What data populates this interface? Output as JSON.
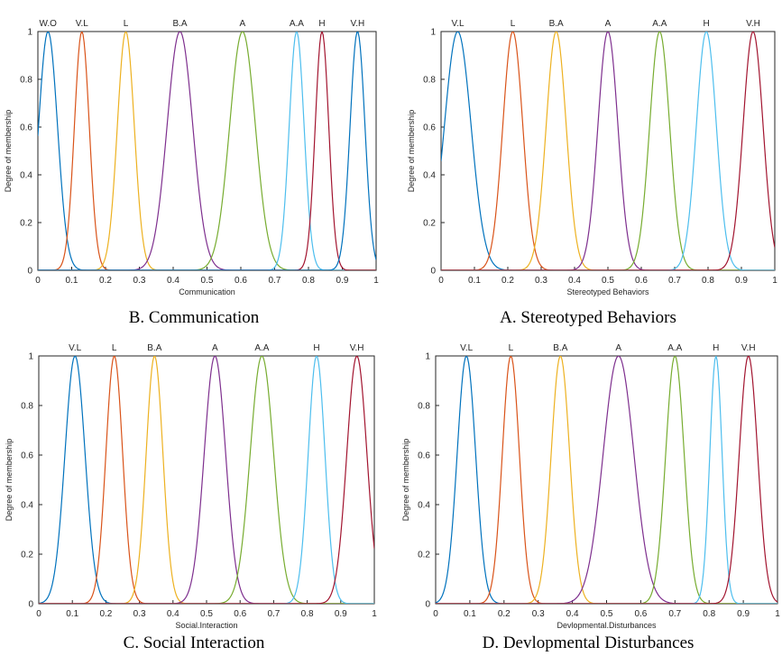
{
  "chart_data": [
    {
      "type": "line",
      "caption": "B. Communication",
      "xlabel": "Communication",
      "ylabel": "Degree of membership",
      "xlim": [
        0,
        1
      ],
      "ylim": [
        0,
        1
      ],
      "xticks": [
        "0",
        "0.1",
        "0.2",
        "0.3",
        "0.4",
        "0.5",
        "0.6",
        "0.7",
        "0.8",
        "0.9",
        "1"
      ],
      "yticks": [
        "0",
        "0.2",
        "0.4",
        "0.6",
        "0.8",
        "1"
      ],
      "grid": false,
      "series": [
        {
          "name": "W.O",
          "color": "#0072BD",
          "center": 0.03,
          "sigma": 0.028
        },
        {
          "name": "V.L",
          "color": "#D95319",
          "center": 0.13,
          "sigma": 0.022
        },
        {
          "name": "L",
          "color": "#EDB120",
          "center": 0.26,
          "sigma": 0.025
        },
        {
          "name": "B.A",
          "color": "#7E2F8E",
          "center": 0.42,
          "sigma": 0.038
        },
        {
          "name": "A",
          "color": "#77AC30",
          "center": 0.605,
          "sigma": 0.038
        },
        {
          "name": "A.A",
          "color": "#4DBEEE",
          "center": 0.765,
          "sigma": 0.022
        },
        {
          "name": "H",
          "color": "#A2142F",
          "center": 0.84,
          "sigma": 0.02
        },
        {
          "name": "V.H",
          "color": "#0072BD",
          "center": 0.945,
          "sigma": 0.022
        }
      ]
    },
    {
      "type": "line",
      "caption": "A. Stereotyped Behaviors",
      "xlabel": "Stereotyped Behaviors",
      "ylabel": "Degree of membership",
      "xlim": [
        0,
        1
      ],
      "ylim": [
        0,
        1
      ],
      "xticks": [
        "0",
        "0.1",
        "0.2",
        "0.3",
        "0.4",
        "0.5",
        "0.6",
        "0.7",
        "0.8",
        "0.9",
        "1"
      ],
      "yticks": [
        "0",
        "0.2",
        "0.4",
        "0.6",
        "0.8",
        "1"
      ],
      "grid": false,
      "series": [
        {
          "name": "V.L",
          "color": "#0072BD",
          "center": 0.05,
          "sigma": 0.04
        },
        {
          "name": "L",
          "color": "#D95319",
          "center": 0.215,
          "sigma": 0.03
        },
        {
          "name": "B.A",
          "color": "#EDB120",
          "center": 0.345,
          "sigma": 0.03
        },
        {
          "name": "A",
          "color": "#7E2F8E",
          "center": 0.5,
          "sigma": 0.03
        },
        {
          "name": "A.A",
          "color": "#77AC30",
          "center": 0.655,
          "sigma": 0.03
        },
        {
          "name": "H",
          "color": "#4DBEEE",
          "center": 0.795,
          "sigma": 0.03
        },
        {
          "name": "V.H",
          "color": "#A2142F",
          "center": 0.935,
          "sigma": 0.03
        }
      ]
    },
    {
      "type": "line",
      "caption": "C. Social Interaction",
      "xlabel": "Social.Interaction",
      "ylabel": "Degree of membership",
      "xlim": [
        0,
        1
      ],
      "ylim": [
        0,
        1
      ],
      "xticks": [
        "0",
        "0.1",
        "0.2",
        "0.3",
        "0.4",
        "0.5",
        "0.6",
        "0.7",
        "0.8",
        "0.9",
        "1"
      ],
      "yticks": [
        "0",
        "0.2",
        "0.4",
        "0.6",
        "0.8",
        "1"
      ],
      "grid": false,
      "series": [
        {
          "name": "V.L",
          "color": "#0072BD",
          "center": 0.108,
          "sigma": 0.03
        },
        {
          "name": "L",
          "color": "#D95319",
          "center": 0.225,
          "sigma": 0.025
        },
        {
          "name": "B.A",
          "color": "#EDB120",
          "center": 0.345,
          "sigma": 0.025
        },
        {
          "name": "A",
          "color": "#7E2F8E",
          "center": 0.525,
          "sigma": 0.032
        },
        {
          "name": "A.A",
          "color": "#77AC30",
          "center": 0.665,
          "sigma": 0.035
        },
        {
          "name": "H",
          "color": "#4DBEEE",
          "center": 0.828,
          "sigma": 0.025
        },
        {
          "name": "V.H",
          "color": "#A2142F",
          "center": 0.948,
          "sigma": 0.03
        }
      ]
    },
    {
      "type": "line",
      "caption": "D. Devlopmental Disturbances",
      "xlabel": "Devlopmental.Disturbances",
      "ylabel": "Degree of membership",
      "xlim": [
        0,
        1
      ],
      "ylim": [
        0,
        1
      ],
      "xticks": [
        "0",
        "0.1",
        "0.2",
        "0.3",
        "0.4",
        "0.5",
        "0.6",
        "0.7",
        "0.8",
        "0.9",
        "1"
      ],
      "yticks": [
        "0",
        "0.2",
        "0.4",
        "0.6",
        "0.8",
        "1"
      ],
      "grid": false,
      "series": [
        {
          "name": "V.L",
          "color": "#0072BD",
          "center": 0.09,
          "sigma": 0.027
        },
        {
          "name": "L",
          "color": "#D95319",
          "center": 0.22,
          "sigma": 0.025
        },
        {
          "name": "B.A",
          "color": "#EDB120",
          "center": 0.365,
          "sigma": 0.027
        },
        {
          "name": "A",
          "color": "#7E2F8E",
          "center": 0.535,
          "sigma": 0.045
        },
        {
          "name": "A.A",
          "color": "#77AC30",
          "center": 0.7,
          "sigma": 0.027
        },
        {
          "name": "H",
          "color": "#4DBEEE",
          "center": 0.82,
          "sigma": 0.018
        },
        {
          "name": "V.H",
          "color": "#A2142F",
          "center": 0.915,
          "sigma": 0.027
        }
      ]
    }
  ]
}
